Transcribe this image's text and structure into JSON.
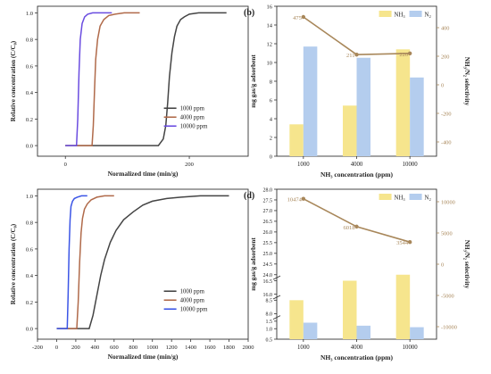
{
  "chart_data": [
    {
      "panel": "(a)",
      "type": "line",
      "xlabel": "Normalized time (min/g)",
      "ylabel": "Relative concentration (C/C₀)",
      "xlim": [
        -45,
        295
      ],
      "ylim": [
        -0.08,
        1.05
      ],
      "xticks": [
        0,
        200
      ],
      "yticks": [
        0.0,
        0.2,
        0.4,
        0.6,
        0.8,
        1.0
      ],
      "grid": false,
      "legend_position": "bottom-right",
      "series": [
        {
          "name": "1000 ppm",
          "color": "#444444",
          "x": [
            0,
            150,
            158,
            162,
            165,
            168,
            172,
            176,
            180,
            186,
            192,
            200,
            215,
            235,
            260
          ],
          "y": [
            0,
            0,
            0.05,
            0.15,
            0.32,
            0.52,
            0.7,
            0.82,
            0.9,
            0.95,
            0.97,
            0.99,
            1.0,
            1.0,
            1.0
          ]
        },
        {
          "name": "4000 ppm",
          "color": "#b06a4a",
          "x": [
            0,
            43,
            45,
            47,
            49,
            52,
            56,
            62,
            70,
            80,
            95,
            120
          ],
          "y": [
            0,
            0,
            0.15,
            0.42,
            0.65,
            0.8,
            0.9,
            0.95,
            0.98,
            0.99,
            1.0,
            1.0
          ]
        },
        {
          "name": "10000 ppm",
          "color": "#6a4ce0",
          "x": [
            0,
            18,
            20,
            22,
            24,
            27,
            31,
            36,
            44,
            55,
            75
          ],
          "y": [
            0,
            0,
            0.2,
            0.55,
            0.8,
            0.92,
            0.97,
            0.99,
            1.0,
            1.0,
            1.0
          ]
        }
      ]
    },
    {
      "panel": "(b)",
      "type": "bar",
      "xlabel": "NH₃ concentration (ppm)",
      "ylabel": "mg gas/g adsorbent",
      "y2label": "NH₃/N₂ selectivity",
      "categories": [
        "1000",
        "4000",
        "10000"
      ],
      "ylim": [
        0,
        16
      ],
      "yticks": [
        0,
        2,
        4,
        6,
        8,
        10,
        12,
        14,
        16
      ],
      "y2lim": [
        -500,
        550
      ],
      "y2ticks": [
        -400,
        -200,
        0,
        200,
        400
      ],
      "legend_position": "top-right",
      "series": [
        {
          "name": "NH₃",
          "color": "#f6e58d",
          "values": [
            3.4,
            5.4,
            11.4
          ]
        },
        {
          "name": "N₂",
          "color": "#b4cdee",
          "values": [
            11.7,
            10.5,
            8.4
          ]
        }
      ],
      "line": {
        "color": "#a8875a",
        "values": [
          475,
          211,
          220
        ],
        "labels": [
          "475",
          "211",
          "220"
        ]
      }
    },
    {
      "panel": "(c)",
      "type": "line",
      "xlabel": "Normalized time (min/g)",
      "ylabel": "Relative concentration (C/C₀)",
      "xlim": [
        -200,
        2000
      ],
      "ylim": [
        -0.08,
        1.05
      ],
      "xticks": [
        -200,
        0,
        200,
        400,
        600,
        800,
        1000,
        1200,
        1400,
        1600,
        1800,
        2000
      ],
      "yticks": [
        0.0,
        0.2,
        0.4,
        0.6,
        0.8,
        1.0
      ],
      "grid": false,
      "legend_position": "bottom-right",
      "series": [
        {
          "name": "1000 ppm",
          "color": "#444444",
          "x": [
            0,
            340,
            380,
            420,
            460,
            500,
            560,
            620,
            700,
            800,
            900,
            1000,
            1150,
            1300,
            1500,
            1800
          ],
          "y": [
            0,
            0,
            0.1,
            0.25,
            0.4,
            0.52,
            0.65,
            0.74,
            0.82,
            0.88,
            0.93,
            0.96,
            0.98,
            0.99,
            1.0,
            1.0
          ]
        },
        {
          "name": "4000 ppm",
          "color": "#b06a4a",
          "x": [
            0,
            210,
            225,
            240,
            255,
            270,
            290,
            320,
            360,
            420,
            500,
            600
          ],
          "y": [
            0,
            0,
            0.2,
            0.5,
            0.72,
            0.83,
            0.9,
            0.94,
            0.97,
            0.99,
            1.0,
            1.0
          ]
        },
        {
          "name": "10000 ppm",
          "color": "#3b55e6",
          "x": [
            0,
            110,
            120,
            130,
            140,
            150,
            165,
            185,
            215,
            260,
            320
          ],
          "y": [
            0,
            0,
            0.25,
            0.6,
            0.82,
            0.92,
            0.96,
            0.98,
            0.99,
            1.0,
            1.0
          ]
        }
      ]
    },
    {
      "panel": "(d)",
      "type": "bar",
      "xlabel": "NH₃ concentration (ppm)",
      "ylabel": "mg gas/g adsorbent",
      "y2label": "NH₃/N₂ selectivity",
      "categories": [
        "1000",
        "4000",
        "10000"
      ],
      "broken_axis": true,
      "yticks_labels": [
        "0.5",
        "1.0",
        "1.5",
        "8.0",
        "8.5",
        "16.0",
        "16.5",
        "24.0",
        "24.5",
        "25.0",
        "25.5",
        "26.0",
        "26.5",
        "27.0",
        "27.5",
        "28.0"
      ],
      "y2lim": [
        -12000,
        12000
      ],
      "y2ticks": [
        -10000,
        -5000,
        0,
        5000,
        10000
      ],
      "legend_position": "top-right",
      "series": [
        {
          "name": "NH₃",
          "color": "#f6e58d",
          "values": [
            8.5,
            16.5,
            24.0
          ]
        },
        {
          "name": "N₂",
          "color": "#b4cdee",
          "values": [
            1.4,
            1.2,
            1.1
          ]
        }
      ],
      "line": {
        "color": "#a8875a",
        "values": [
          10474,
          6018,
          3544
        ],
        "labels": [
          "10474",
          "6018",
          "3544"
        ]
      }
    }
  ]
}
